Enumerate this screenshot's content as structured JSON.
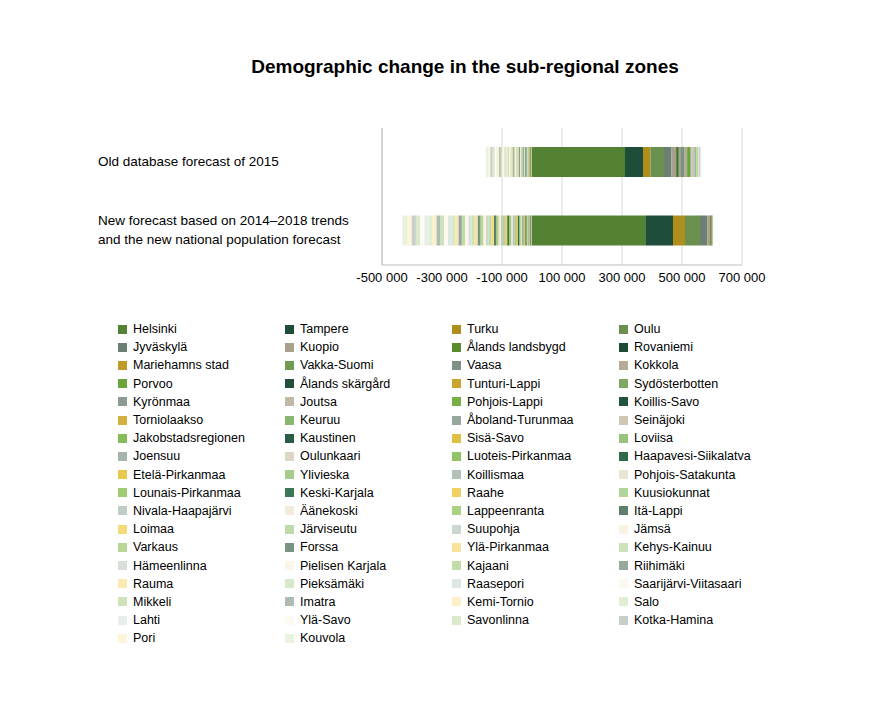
{
  "chart_data": {
    "type": "bar",
    "title": "Demographic change in the sub-regional zones",
    "orientation": "horizontal",
    "stacked": true,
    "grid": true,
    "legend": "bottom",
    "categories": [
      "Old database forecast of 2015",
      "New forecast based on 2014–2018 trends and the new national population forecast"
    ],
    "xlim": [
      -500000,
      700000
    ],
    "xticks": [
      {
        "value": -500000,
        "label": "-500 000"
      },
      {
        "value": -300000,
        "label": "-300 000"
      },
      {
        "value": -100000,
        "label": "-100 000"
      },
      {
        "value": 100000,
        "label": "100 000"
      },
      {
        "value": 300000,
        "label": "300 000"
      },
      {
        "value": 500000,
        "label": "500 000"
      },
      {
        "value": 700000,
        "label": "700 000"
      }
    ],
    "series": [
      {
        "name": "Helsinki",
        "color": "#548235",
        "values": [
          310000,
          380000
        ]
      },
      {
        "name": "Tampere",
        "color": "#1e4d3a",
        "values": [
          60000,
          90000
        ]
      },
      {
        "name": "Turku",
        "color": "#b08e1c",
        "values": [
          25000,
          40000
        ]
      },
      {
        "name": "Oulu",
        "color": "#6a8f4e",
        "values": [
          45000,
          50000
        ]
      },
      {
        "name": "Jyväskylä",
        "color": "#6b7f72",
        "values": [
          25000,
          25000
        ]
      },
      {
        "name": "Kuopio",
        "color": "#a9a08a",
        "values": [
          15000,
          8000
        ]
      },
      {
        "name": "Ålands landsbygd",
        "color": "#5a8a2a",
        "values": [
          4000,
          3000
        ]
      },
      {
        "name": "Rovaniemi",
        "color": "#1d4a35",
        "values": [
          5000,
          2500
        ]
      },
      {
        "name": "Mariehamns stad",
        "color": "#bf9b2a",
        "values": [
          2000,
          1500
        ]
      },
      {
        "name": "Vakka-Suomi",
        "color": "#6f9a52",
        "values": [
          3000,
          1000
        ]
      },
      {
        "name": "Vaasa",
        "color": "#7f9183",
        "values": [
          15000,
          800
        ]
      },
      {
        "name": "Kokkola",
        "color": "#b5ab96",
        "values": [
          8000,
          500
        ]
      },
      {
        "name": "Porvoo",
        "color": "#6aa53a",
        "values": [
          10000,
          300
        ]
      },
      {
        "name": "Ålands skärgård",
        "color": "#21503a",
        "values": [
          200,
          -200
        ]
      },
      {
        "name": "Tunturi-Lappi",
        "color": "#c9a42e",
        "values": [
          -800,
          -500
        ]
      },
      {
        "name": "Sydösterbotten",
        "color": "#7fa862",
        "values": [
          2000,
          -700
        ]
      },
      {
        "name": "Kyrönmaa",
        "color": "#8a9c8f",
        "values": [
          1000,
          -900
        ]
      },
      {
        "name": "Joutsa",
        "color": "#c1b9a5",
        "values": [
          -1500,
          -1200
        ]
      },
      {
        "name": "Pohjois-Lappi",
        "color": "#78b048",
        "values": [
          -1500,
          -1400
        ]
      },
      {
        "name": "Koillis-Savo",
        "color": "#23553e",
        "values": [
          -2000,
          -1700
        ]
      },
      {
        "name": "Torniolaakso",
        "color": "#d4b040",
        "values": [
          -1500,
          -2000
        ]
      },
      {
        "name": "Keuruu",
        "color": "#8ab570",
        "values": [
          -2000,
          -2200
        ]
      },
      {
        "name": "Åboland-Turunmaa",
        "color": "#97a89c",
        "values": [
          -1500,
          -2500
        ]
      },
      {
        "name": "Seinäjoki",
        "color": "#cfc7b4",
        "values": [
          10000,
          -2800
        ]
      },
      {
        "name": "Jakobstadsregionen",
        "color": "#86bc57",
        "values": [
          2000,
          -3000
        ]
      },
      {
        "name": "Kaustinen",
        "color": "#2a5d45",
        "values": [
          -500,
          -3300
        ]
      },
      {
        "name": "Sisä-Savo",
        "color": "#e0bf45",
        "values": [
          -2000,
          -3600
        ]
      },
      {
        "name": "Loviisa",
        "color": "#98c27d",
        "values": [
          -2000,
          -3800
        ]
      },
      {
        "name": "Joensuu",
        "color": "#a5b5a9",
        "values": [
          5000,
          -4100
        ]
      },
      {
        "name": "Oulunkaari",
        "color": "#ddd6c4",
        "values": [
          -2000,
          -4400
        ]
      },
      {
        "name": "Luoteis-Pirkanmaa",
        "color": "#92c467",
        "values": [
          -2000,
          -4600
        ]
      },
      {
        "name": "Haapavesi-Siikalatva",
        "color": "#2f6a4d",
        "values": [
          -3000,
          -4900
        ]
      },
      {
        "name": "Etelä-Pirkanmaa",
        "color": "#e8c84e",
        "values": [
          1000,
          -5200
        ]
      },
      {
        "name": "Ylivieska",
        "color": "#a6cc8c",
        "values": [
          2000,
          -5400
        ]
      },
      {
        "name": "Koillismaa",
        "color": "#b2c2b6",
        "values": [
          -3000,
          -5700
        ]
      },
      {
        "name": "Pohjois-Satakunta",
        "color": "#ebe4d2",
        "values": [
          -3000,
          -6000
        ]
      },
      {
        "name": "Lounais-Pirkanmaa",
        "color": "#9ecb73",
        "values": [
          1000,
          -6200
        ]
      },
      {
        "name": "Keski-Karjala",
        "color": "#3e7659",
        "values": [
          -3000,
          -6500
        ]
      },
      {
        "name": "Raahe",
        "color": "#f0d060",
        "values": [
          -1000,
          -6800
        ]
      },
      {
        "name": "Kuusiokunnat",
        "color": "#b2d49a",
        "values": [
          -3500,
          -7000
        ]
      },
      {
        "name": "Nivala-Haapajärvi",
        "color": "#bfcdc3",
        "values": [
          -2000,
          -7300
        ]
      },
      {
        "name": "Äänekoski",
        "color": "#f3ecdc",
        "values": [
          -3000,
          -7600
        ]
      },
      {
        "name": "Lappeenranta",
        "color": "#abd183",
        "values": [
          3000,
          -7800
        ]
      },
      {
        "name": "Itä-Lappi",
        "color": "#5f7f6c",
        "values": [
          -3500,
          -8100
        ]
      },
      {
        "name": "Loimaa",
        "color": "#f5da7a",
        "values": [
          -3000,
          -8400
        ]
      },
      {
        "name": "Järviseutu",
        "color": "#bfdbab",
        "values": [
          -3000,
          -8600
        ]
      },
      {
        "name": "Suupohja",
        "color": "#ccd8cf",
        "values": [
          -3500,
          -8900
        ]
      },
      {
        "name": "Jämsä",
        "color": "#f8f1e4",
        "values": [
          -3500,
          -9200
        ]
      },
      {
        "name": "Varkaus",
        "color": "#b7d794",
        "values": [
          -4000,
          -9400
        ]
      },
      {
        "name": "Forssa",
        "color": "#7a9382",
        "values": [
          -3500,
          -9700
        ]
      },
      {
        "name": "Ylä-Pirkanmaa",
        "color": "#f8e39a",
        "values": [
          -3000,
          -10000
        ]
      },
      {
        "name": "Kehys-Kainuu",
        "color": "#cbe2bb",
        "values": [
          -4500,
          -10200
        ]
      },
      {
        "name": "Hämeenlinna",
        "color": "#d6e0d9",
        "values": [
          3000,
          -10500
        ]
      },
      {
        "name": "Pielisen Karjala",
        "color": "#fbf5ea",
        "values": [
          -5000,
          -10800
        ]
      },
      {
        "name": "Kajaani",
        "color": "#c3dca7",
        "values": [
          -4500,
          -11000
        ]
      },
      {
        "name": "Riihimäki",
        "color": "#95a89b",
        "values": [
          2000,
          -11300
        ]
      },
      {
        "name": "Rauma",
        "color": "#fbe9b3",
        "values": [
          -4000,
          -11600
        ]
      },
      {
        "name": "Pieksämäki",
        "color": "#d6e9c9",
        "values": [
          -4500,
          -11800
        ]
      },
      {
        "name": "Raasepori",
        "color": "#dfe7e2",
        "values": [
          -4000,
          -12100
        ]
      },
      {
        "name": "Saarijärvi-Viitasaari",
        "color": "#fdf8ef",
        "values": [
          -5000,
          -12400
        ]
      },
      {
        "name": "Mikkeli",
        "color": "#cfe2bb",
        "values": [
          -5000,
          -12600
        ]
      },
      {
        "name": "Imatra",
        "color": "#aebcb2",
        "values": [
          -5500,
          -12900
        ]
      },
      {
        "name": "Kemi-Tornio",
        "color": "#fdf0c8",
        "values": [
          -6000,
          -13200
        ]
      },
      {
        "name": "Salo",
        "color": "#e0eed6",
        "values": [
          -3000,
          -13400
        ]
      },
      {
        "name": "Lahti",
        "color": "#e7ede9",
        "values": [
          5000,
          -13700
        ]
      },
      {
        "name": "Ylä-Savo",
        "color": "#fefaf3",
        "values": [
          -5500,
          -14000
        ]
      },
      {
        "name": "Savonlinna",
        "color": "#dbe8cc",
        "values": [
          -7000,
          -14200
        ]
      },
      {
        "name": "Kotka-Hamina",
        "color": "#c6d0c9",
        "values": [
          -8000,
          -14500
        ]
      },
      {
        "name": "Pori",
        "color": "#fef4da",
        "values": [
          -6000,
          -14800
        ]
      },
      {
        "name": "Kouvola",
        "color": "#e7f2df",
        "values": [
          -9000,
          -15000
        ]
      }
    ]
  }
}
